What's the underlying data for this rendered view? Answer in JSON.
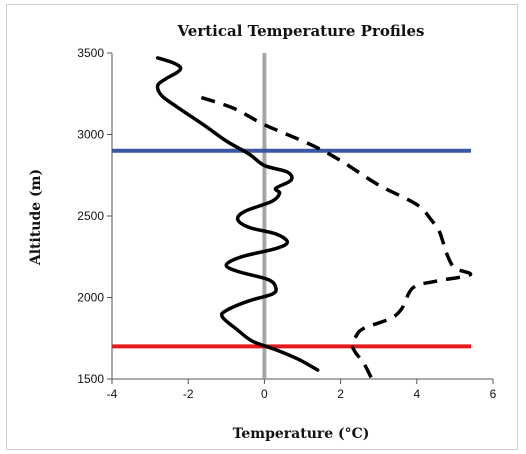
{
  "chart_data": {
    "type": "line",
    "title": "Vertical Temperature Profiles",
    "xlabel": "Temperature (°C)",
    "ylabel": "Altitude (m)",
    "xlim": [
      -4,
      6
    ],
    "ylim": [
      1500,
      3500
    ],
    "xticks": [
      -4,
      -2,
      0,
      2,
      4,
      6
    ],
    "yticks": [
      1500,
      2000,
      2500,
      3000,
      3500
    ],
    "grid": false,
    "legend": "none",
    "series": [
      {
        "style": "solid",
        "color": "#000000",
        "points": [
          [
            1.4,
            1555
          ],
          [
            0.9,
            1620
          ],
          [
            0.3,
            1680
          ],
          [
            -0.3,
            1730
          ],
          [
            -0.7,
            1800
          ],
          [
            -1.1,
            1880
          ],
          [
            -1.0,
            1920
          ],
          [
            -0.4,
            1980
          ],
          [
            0.2,
            2020
          ],
          [
            0.3,
            2060
          ],
          [
            0.1,
            2110
          ],
          [
            -0.7,
            2160
          ],
          [
            -1.0,
            2200
          ],
          [
            -0.6,
            2250
          ],
          [
            0.3,
            2300
          ],
          [
            0.6,
            2340
          ],
          [
            0.3,
            2390
          ],
          [
            -0.4,
            2430
          ],
          [
            -0.7,
            2480
          ],
          [
            -0.5,
            2530
          ],
          [
            0.2,
            2590
          ],
          [
            0.4,
            2640
          ],
          [
            0.3,
            2670
          ],
          [
            0.7,
            2720
          ],
          [
            0.6,
            2770
          ],
          [
            0.0,
            2810
          ],
          [
            -0.4,
            2880
          ],
          [
            -1.0,
            2960
          ],
          [
            -1.6,
            3060
          ],
          [
            -2.3,
            3170
          ],
          [
            -2.7,
            3240
          ],
          [
            -2.8,
            3300
          ],
          [
            -2.6,
            3340
          ],
          [
            -2.3,
            3380
          ],
          [
            -2.2,
            3410
          ],
          [
            -2.4,
            3440
          ],
          [
            -2.8,
            3470
          ]
        ]
      },
      {
        "style": "dashed",
        "color": "#000000",
        "points": [
          [
            2.8,
            1510
          ],
          [
            2.6,
            1600
          ],
          [
            2.4,
            1660
          ],
          [
            2.3,
            1710
          ],
          [
            2.4,
            1760
          ],
          [
            2.6,
            1810
          ],
          [
            3.3,
            1870
          ],
          [
            3.6,
            1930
          ],
          [
            3.9,
            2060
          ],
          [
            4.5,
            2100
          ],
          [
            5.4,
            2140
          ],
          [
            5.0,
            2180
          ],
          [
            4.8,
            2260
          ],
          [
            4.6,
            2400
          ],
          [
            4.4,
            2470
          ],
          [
            4.0,
            2570
          ],
          [
            3.0,
            2690
          ],
          [
            2.0,
            2840
          ],
          [
            1.2,
            2940
          ],
          [
            0.0,
            3060
          ],
          [
            -0.8,
            3160
          ],
          [
            -1.7,
            3230
          ]
        ]
      }
    ],
    "reference_lines": [
      {
        "orientation": "vertical",
        "x": 0,
        "color": "#a6a6a6"
      },
      {
        "orientation": "horizontal",
        "y": 2900,
        "color": "#3a57a6"
      },
      {
        "orientation": "horizontal",
        "y": 1700,
        "color": "#e41a1c"
      }
    ]
  }
}
